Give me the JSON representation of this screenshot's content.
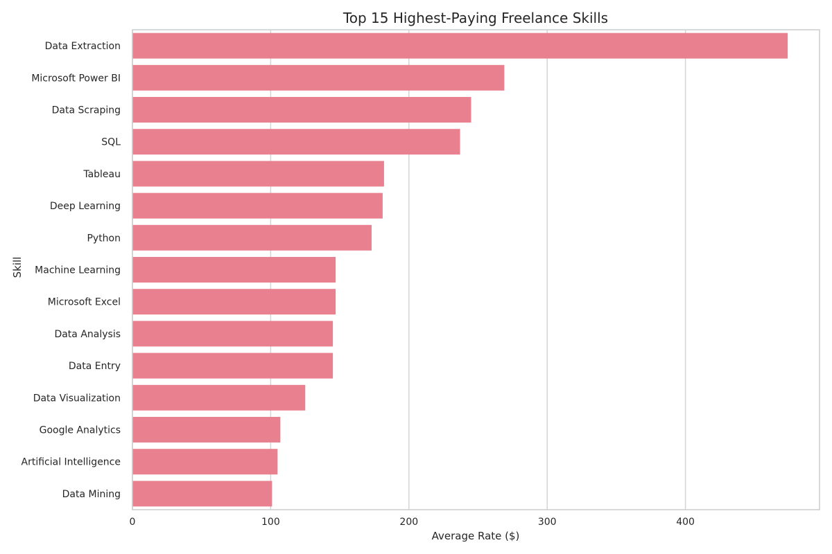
{
  "chart_data": {
    "type": "bar",
    "orientation": "horizontal",
    "title": "Top 15 Highest-Paying Freelance Skills",
    "xlabel": "Average Rate ($)",
    "ylabel": "Skill",
    "categories": [
      "Data Extraction",
      "Microsoft Power BI",
      "Data Scraping",
      "SQL",
      "Tableau",
      "Deep Learning",
      "Python",
      "Machine Learning",
      "Microsoft Excel",
      "Data Analysis",
      "Data Entry",
      "Data Visualization",
      "Google Analytics",
      "Artificial Intelligence",
      "Data Mining"
    ],
    "values": [
      474,
      269,
      245,
      237,
      182,
      181,
      173,
      147,
      147,
      145,
      145,
      125,
      107,
      105,
      101
    ],
    "xlim": [
      0,
      497
    ],
    "xticks": [
      0,
      100,
      200,
      300,
      400
    ],
    "grid": true,
    "bar_color": "#e8808f",
    "legend": "none"
  }
}
